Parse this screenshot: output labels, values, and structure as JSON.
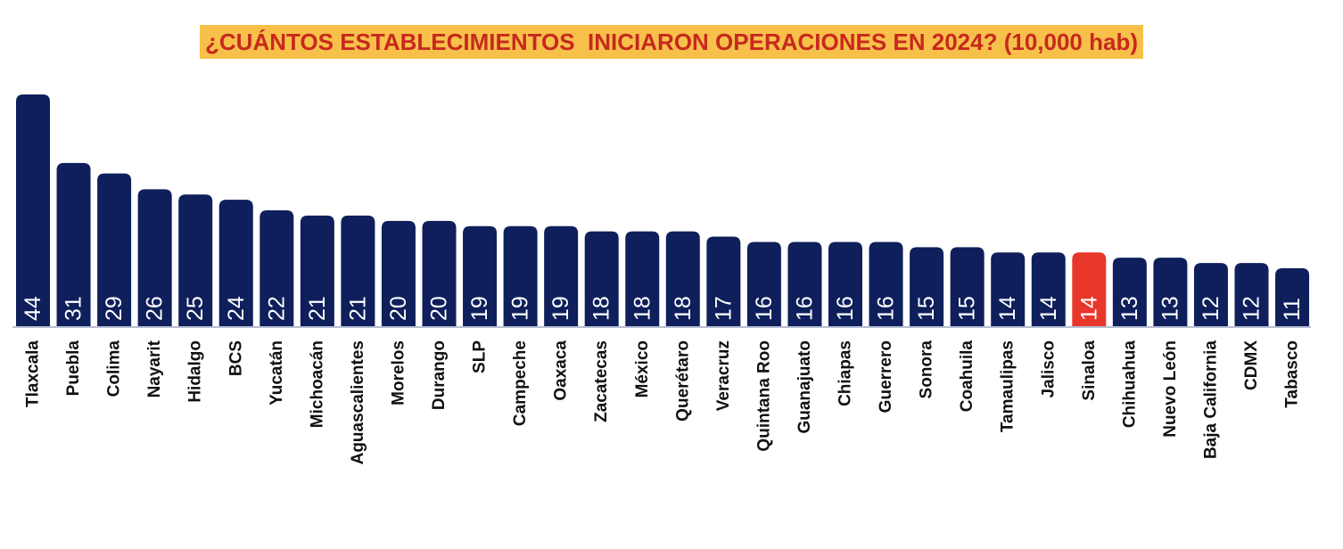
{
  "chart_data": {
    "type": "bar",
    "title": "¿CUÁNTOS ESTABLECIMIENTOS  INICIARON OPERACIONES EN 2024? (10,000 hab)",
    "categories": [
      "Tlaxcala",
      "Puebla",
      "Colima",
      "Nayarit",
      "Hidalgo",
      "BCS",
      "Yucatán",
      "Michoacán",
      "Aguascalientes",
      "Morelos",
      "Durango",
      "SLP",
      "Campeche",
      "Oaxaca",
      "Zacatecas",
      "México",
      "Querétaro",
      "Veracruz",
      "Quintana Roo",
      "Guanajuato",
      "Chiapas",
      "Guerrero",
      "Sonora",
      "Coahuila",
      "Tamaulipas",
      "Jalisco",
      "Sinaloa",
      "Chihuahua",
      "Nuevo León",
      "Baja California",
      "CDMX",
      "Tabasco"
    ],
    "values": [
      44,
      31,
      29,
      26,
      25,
      24,
      22,
      21,
      21,
      20,
      20,
      19,
      19,
      19,
      18,
      18,
      18,
      17,
      16,
      16,
      16,
      16,
      15,
      15,
      14,
      14,
      14,
      13,
      13,
      12,
      12,
      11
    ],
    "value_labels": [
      "44",
      "31",
      "29",
      "26",
      "25",
      "24",
      "22",
      "21",
      "21",
      "20",
      "20",
      "19",
      "19",
      "19",
      "18",
      "18",
      "18",
      "17",
      "16",
      "16",
      "16",
      "16",
      "15",
      "15",
      "14",
      "14",
      "14",
      "13",
      "13",
      "12",
      "12",
      "11"
    ],
    "highlight": "Sinaloa",
    "xlabel": "",
    "ylabel": "",
    "ylim": [
      0,
      46
    ],
    "grid": false,
    "legend": "none",
    "colors": {
      "bar": "#0e1f5b",
      "highlight": "#e8372a",
      "title_bg": "#f7c04a",
      "title_text": "#c8281e",
      "value_label": "#ffffff",
      "baseline": "#b7bed3"
    }
  }
}
